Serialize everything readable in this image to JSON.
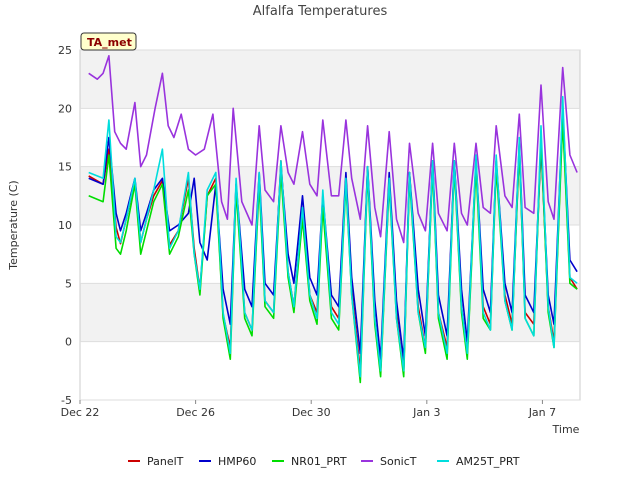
{
  "chart_data": {
    "type": "line",
    "title": "Alfalfa Temperatures",
    "xlabel": "Time",
    "ylabel": "Temperature (C)",
    "badge": "TA_met",
    "xlim": [
      0,
      17.3
    ],
    "ylim": [
      -5,
      25
    ],
    "yticks": [
      -5,
      0,
      5,
      10,
      15,
      20,
      25
    ],
    "xticks": [
      {
        "value": 0,
        "label": "Dec 22"
      },
      {
        "value": 4,
        "label": "Dec 26"
      },
      {
        "value": 8,
        "label": "Dec 30"
      },
      {
        "value": 12,
        "label": "Jan 3"
      },
      {
        "value": 16,
        "label": "Jan 7"
      }
    ],
    "grid": true,
    "legend_position": "bottom",
    "series": [
      {
        "name": "PanelT",
        "color": "#cc0000",
        "x": [
          0.3,
          0.8,
          1.0,
          1.25,
          1.4,
          1.6,
          1.9,
          2.1,
          2.3,
          2.55,
          2.85,
          3.1,
          3.4,
          3.75,
          3.95,
          4.15,
          4.4,
          4.7,
          4.95,
          5.2,
          5.4,
          5.7,
          5.95,
          6.2,
          6.4,
          6.7,
          6.95,
          7.2,
          7.4,
          7.7,
          7.95,
          8.2,
          8.4,
          8.7,
          8.95,
          9.2,
          9.4,
          9.7,
          9.95,
          10.2,
          10.4,
          10.7,
          10.95,
          11.2,
          11.4,
          11.7,
          11.95,
          12.2,
          12.4,
          12.7,
          12.95,
          13.2,
          13.4,
          13.7,
          13.95,
          14.2,
          14.4,
          14.7,
          14.95,
          15.2,
          15.4,
          15.7,
          15.95,
          16.2,
          16.4,
          16.7,
          16.95,
          17.2
        ],
        "y": [
          14.2,
          13.5,
          16.5,
          9.8,
          8.4,
          10.5,
          13.8,
          8.5,
          10.5,
          12.5,
          13.8,
          8.3,
          9.5,
          14.0,
          8.0,
          4.5,
          12.5,
          14.0,
          2.3,
          -0.5,
          13.5,
          2.5,
          1.0,
          14.0,
          3.5,
          2.5,
          15.5,
          6.0,
          3.0,
          11.5,
          4.0,
          2.5,
          12.0,
          3.0,
          2.0,
          14.0,
          4.5,
          -2.5,
          15.0,
          2.0,
          -2.5,
          14.0,
          2.5,
          -2.5,
          14.5,
          3.0,
          -0.5,
          15.5,
          2.5,
          -0.5,
          15.5,
          3.0,
          -1.0,
          15.5,
          3.0,
          1.5,
          15.5,
          4.0,
          1.5,
          16.5,
          2.5,
          1.5,
          17.0,
          3.0,
          0.0,
          19.5,
          5.5,
          4.5
        ]
      },
      {
        "name": "HMP60",
        "color": "#0000cc",
        "x": [
          0.3,
          0.8,
          1.0,
          1.25,
          1.4,
          1.6,
          1.9,
          2.1,
          2.3,
          2.55,
          2.85,
          3.1,
          3.4,
          3.75,
          3.95,
          4.15,
          4.4,
          4.7,
          4.95,
          5.2,
          5.4,
          5.7,
          5.95,
          6.2,
          6.4,
          6.7,
          6.95,
          7.2,
          7.4,
          7.7,
          7.95,
          8.2,
          8.4,
          8.7,
          8.95,
          9.2,
          9.4,
          9.7,
          9.95,
          10.2,
          10.4,
          10.7,
          10.95,
          11.2,
          11.4,
          11.7,
          11.95,
          12.2,
          12.4,
          12.7,
          12.95,
          13.2,
          13.4,
          13.7,
          13.95,
          14.2,
          14.4,
          14.7,
          14.95,
          15.2,
          15.4,
          15.7,
          15.95,
          16.2,
          16.4,
          16.7,
          16.95,
          17.2
        ],
        "y": [
          14.0,
          13.5,
          17.5,
          11.0,
          9.5,
          11.0,
          14.0,
          9.5,
          11.0,
          13.0,
          14.0,
          9.5,
          10.0,
          11.0,
          14.0,
          8.5,
          7.0,
          13.5,
          4.5,
          1.5,
          13.5,
          4.5,
          3.0,
          14.5,
          5.0,
          4.0,
          15.0,
          7.5,
          5.0,
          12.5,
          5.5,
          4.0,
          12.5,
          4.0,
          3.0,
          14.5,
          5.5,
          -1.0,
          15.0,
          3.5,
          -1.5,
          14.5,
          3.5,
          -1.5,
          14.5,
          4.5,
          0.5,
          15.5,
          4.0,
          0.5,
          15.5,
          4.5,
          0.0,
          15.5,
          4.5,
          2.5,
          15.5,
          5.0,
          2.5,
          17.0,
          4.0,
          2.5,
          17.0,
          4.0,
          1.5,
          20.0,
          7.0,
          6.0
        ]
      },
      {
        "name": "NR01_PRT",
        "color": "#00dd00",
        "x": [
          0.3,
          0.8,
          1.0,
          1.25,
          1.4,
          1.6,
          1.9,
          2.1,
          2.3,
          2.55,
          2.85,
          3.1,
          3.4,
          3.75,
          3.95,
          4.15,
          4.4,
          4.7,
          4.95,
          5.2,
          5.4,
          5.7,
          5.95,
          6.2,
          6.4,
          6.7,
          6.95,
          7.2,
          7.4,
          7.7,
          7.95,
          8.2,
          8.4,
          8.7,
          8.95,
          9.2,
          9.4,
          9.7,
          9.95,
          10.2,
          10.4,
          10.7,
          10.95,
          11.2,
          11.4,
          11.7,
          11.95,
          12.2,
          12.4,
          12.7,
          12.95,
          13.2,
          13.4,
          13.7,
          13.95,
          14.2,
          14.4,
          14.7,
          14.95,
          15.2,
          15.4,
          15.7,
          15.95,
          16.2,
          16.4,
          16.7,
          16.95,
          17.2
        ],
        "y": [
          12.5,
          12.0,
          16.0,
          8.0,
          7.5,
          9.5,
          13.5,
          7.5,
          9.5,
          12.0,
          13.5,
          7.5,
          9.0,
          13.0,
          7.5,
          4.0,
          12.5,
          13.5,
          2.0,
          -1.5,
          13.0,
          2.0,
          0.5,
          13.5,
          3.0,
          2.0,
          14.5,
          5.5,
          2.5,
          10.5,
          3.5,
          1.5,
          11.5,
          2.0,
          1.0,
          13.5,
          4.0,
          -3.5,
          14.5,
          1.5,
          -3.0,
          13.5,
          2.0,
          -3.0,
          14.0,
          2.5,
          -1.0,
          15.0,
          2.0,
          -1.5,
          15.0,
          2.5,
          -1.5,
          15.0,
          2.0,
          1.0,
          15.0,
          3.5,
          1.0,
          16.5,
          2.0,
          0.5,
          17.5,
          2.5,
          -0.5,
          19.0,
          5.0,
          4.5
        ]
      },
      {
        "name": "SonicT",
        "color": "#9933dd",
        "x": [
          0.3,
          0.6,
          0.8,
          1.0,
          1.2,
          1.4,
          1.6,
          1.9,
          2.1,
          2.3,
          2.6,
          2.85,
          3.05,
          3.25,
          3.5,
          3.75,
          4.0,
          4.3,
          4.6,
          4.9,
          5.1,
          5.3,
          5.6,
          5.95,
          6.2,
          6.4,
          6.7,
          6.95,
          7.2,
          7.4,
          7.7,
          7.95,
          8.2,
          8.4,
          8.7,
          8.95,
          9.2,
          9.4,
          9.7,
          9.95,
          10.2,
          10.4,
          10.7,
          10.95,
          11.2,
          11.4,
          11.7,
          11.95,
          12.2,
          12.4,
          12.7,
          12.95,
          13.2,
          13.4,
          13.7,
          13.95,
          14.2,
          14.4,
          14.7,
          14.95,
          15.2,
          15.4,
          15.7,
          15.95,
          16.2,
          16.4,
          16.7,
          16.95,
          17.2
        ],
        "y": [
          23.0,
          22.5,
          23.0,
          24.5,
          18.0,
          17.0,
          16.5,
          20.5,
          15.0,
          16.0,
          20.0,
          23.0,
          18.5,
          17.5,
          19.5,
          16.5,
          16.0,
          16.5,
          19.5,
          12.0,
          10.5,
          20.0,
          12.0,
          10.0,
          18.5,
          13.0,
          12.0,
          18.5,
          14.5,
          13.5,
          18.0,
          13.5,
          12.5,
          19.0,
          12.5,
          12.5,
          19.0,
          14.0,
          10.5,
          18.5,
          11.5,
          9.0,
          18.0,
          10.5,
          8.5,
          17.0,
          11.0,
          9.5,
          17.0,
          11.0,
          9.5,
          17.0,
          11.0,
          10.0,
          17.0,
          11.5,
          11.0,
          18.5,
          12.5,
          11.5,
          19.5,
          11.5,
          11.0,
          22.0,
          12.0,
          10.5,
          23.5,
          16.0,
          14.5
        ]
      },
      {
        "name": "AM25T_PRT",
        "color": "#00dddd",
        "x": [
          0.3,
          0.8,
          1.0,
          1.25,
          1.4,
          1.6,
          1.9,
          2.1,
          2.3,
          2.55,
          2.85,
          3.1,
          3.4,
          3.75,
          3.95,
          4.15,
          4.4,
          4.7,
          4.95,
          5.2,
          5.4,
          5.7,
          5.95,
          6.2,
          6.4,
          6.7,
          6.95,
          7.2,
          7.4,
          7.7,
          7.95,
          8.2,
          8.4,
          8.7,
          8.95,
          9.2,
          9.4,
          9.7,
          9.95,
          10.2,
          10.4,
          10.7,
          10.95,
          11.2,
          11.4,
          11.7,
          11.95,
          12.2,
          12.4,
          12.7,
          12.95,
          13.2,
          13.4,
          13.7,
          13.95,
          14.2,
          14.4,
          14.7,
          14.95,
          15.2,
          15.4,
          15.7,
          15.95,
          16.2,
          16.4,
          16.7,
          16.95,
          17.2
        ],
        "y": [
          14.5,
          14.0,
          19.0,
          9.0,
          8.5,
          10.5,
          14.0,
          8.5,
          10.5,
          13.0,
          16.5,
          8.0,
          9.5,
          14.5,
          7.5,
          4.5,
          13.0,
          14.5,
          2.5,
          -1.0,
          14.0,
          2.5,
          1.0,
          14.5,
          3.5,
          2.5,
          15.5,
          6.0,
          3.0,
          11.5,
          4.0,
          2.0,
          13.0,
          2.5,
          1.5,
          14.0,
          4.0,
          -3.0,
          15.0,
          2.0,
          -2.5,
          14.0,
          2.0,
          -2.5,
          14.5,
          2.5,
          -0.5,
          15.5,
          2.5,
          -1.0,
          15.5,
          3.0,
          -1.0,
          16.0,
          2.5,
          1.0,
          16.0,
          3.5,
          1.0,
          17.5,
          2.0,
          0.5,
          18.5,
          3.0,
          -0.5,
          21.0,
          5.5,
          5.0
        ]
      }
    ]
  }
}
